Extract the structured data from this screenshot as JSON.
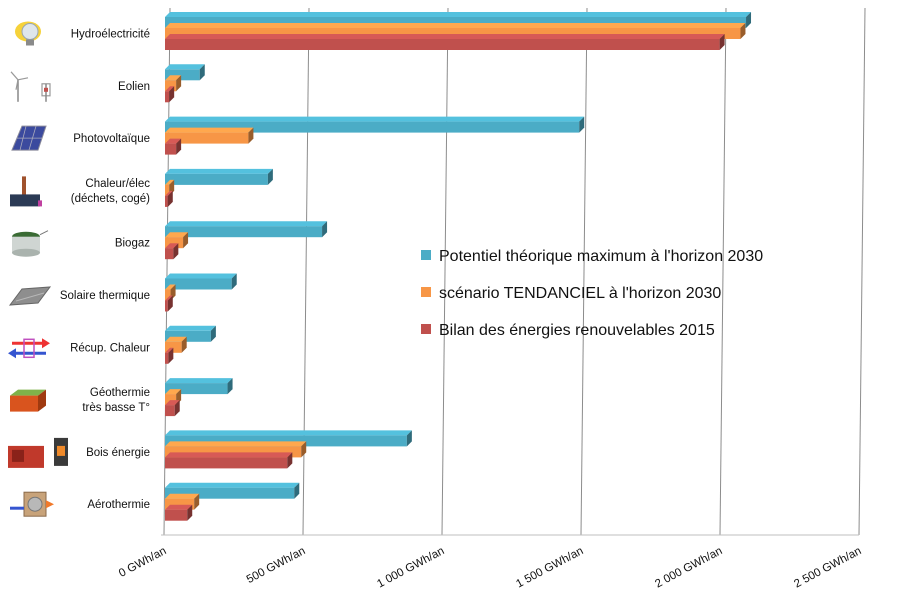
{
  "chart_data": {
    "type": "bar",
    "orientation": "horizontal",
    "categories": [
      "Hydroélectricité",
      "Eolien",
      "Photovoltaïque",
      "Chaleur/élec\n(déchets, cogé)",
      "Biogaz",
      "Solaire thermique",
      "Récup. Chaleur",
      "Géothermie\ntrès basse T°",
      "Bois énergie",
      "Aérothermie"
    ],
    "series": [
      {
        "name": "Potentiel théorique maximum à l'horizon 2030",
        "color": "#4BACC6",
        "values": [
          2090,
          125,
          1490,
          370,
          565,
          240,
          165,
          225,
          870,
          465
        ]
      },
      {
        "name": "scénario TENDANCIEL à l'horizon 2030",
        "color": "#F79646",
        "values": [
          2070,
          40,
          300,
          15,
          65,
          20,
          60,
          40,
          490,
          105
        ]
      },
      {
        "name": "Bilan des énergies renouvelables 2015",
        "color": "#C0504D",
        "values": [
          1995,
          15,
          40,
          10,
          30,
          10,
          12,
          35,
          440,
          80
        ]
      }
    ],
    "xticks": [
      "0 GWh/an",
      "500 GWh/an",
      "1 000 GWh/an",
      "1 500 GWh/an",
      "2 000 GWh/an",
      "2 500 GWh/an"
    ],
    "xlim": [
      0,
      2500
    ],
    "grid": true,
    "legend_position": "right-center",
    "icons": [
      "hydro-icon",
      "wind-turbine-icon",
      "solar-panel-icon",
      "waste-incinerator-icon",
      "biogas-tank-icon",
      "solar-thermal-icon",
      "heat-recovery-icon",
      "geothermal-icon",
      "wood-stove-icon",
      "heat-pump-icon"
    ]
  }
}
